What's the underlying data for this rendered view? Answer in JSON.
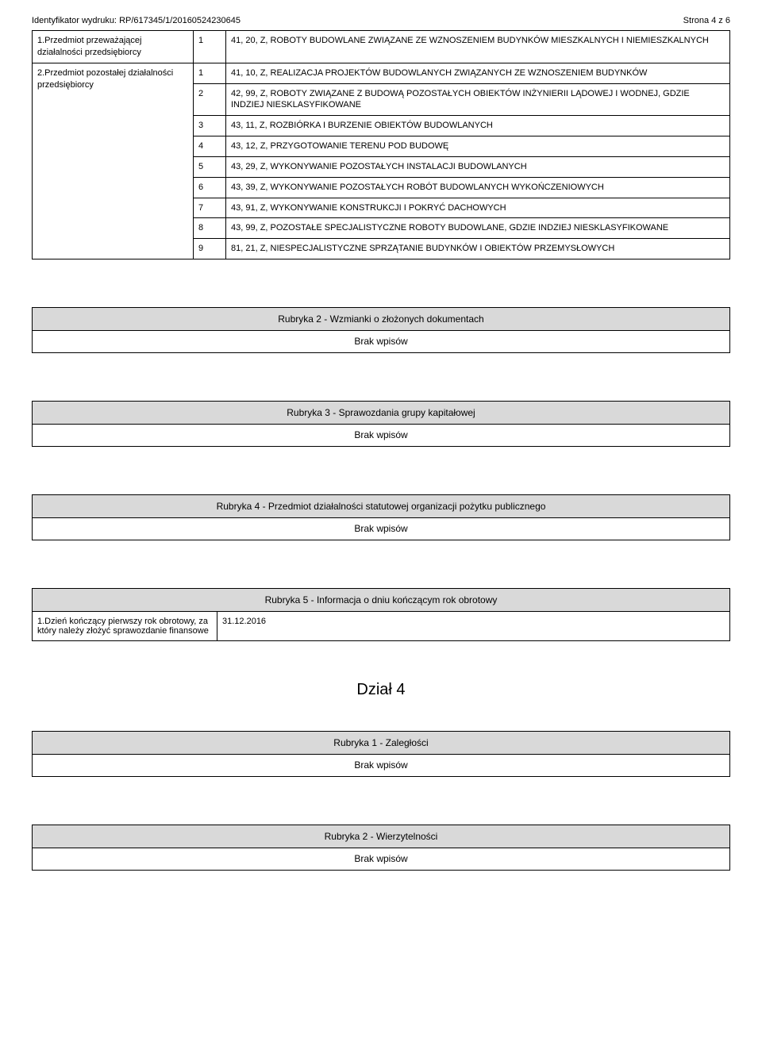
{
  "header": {
    "identifier_label": "Identyfikator wydruku:",
    "identifier_value": "RP/617345/1/20160524230645",
    "page_label": "Strona 4 z 6"
  },
  "activities_table": {
    "rows": [
      {
        "label": "1.Przedmiot przeważającej działalności przedsiębiorcy",
        "items": [
          {
            "n": "1",
            "text": "41, 20, Z, ROBOTY BUDOWLANE ZWIĄZANE ZE WZNOSZENIEM BUDYNKÓW MIESZKALNYCH I NIEMIESZKALNYCH"
          }
        ]
      },
      {
        "label": "2.Przedmiot pozostałej działalności przedsiębiorcy",
        "items": [
          {
            "n": "1",
            "text": "41, 10, Z, REALIZACJA PROJEKTÓW BUDOWLANYCH ZWIĄZANYCH ZE WZNOSZENIEM BUDYNKÓW"
          },
          {
            "n": "2",
            "text": "42, 99, Z, ROBOTY ZWIĄZANE Z BUDOWĄ POZOSTAŁYCH OBIEKTÓW INŻYNIERII LĄDOWEJ I WODNEJ, GDZIE INDZIEJ NIESKLASYFIKOWANE"
          },
          {
            "n": "3",
            "text": "43, 11, Z, ROZBIÓRKA I BURZENIE OBIEKTÓW BUDOWLANYCH"
          },
          {
            "n": "4",
            "text": "43, 12, Z, PRZYGOTOWANIE TERENU POD BUDOWĘ"
          },
          {
            "n": "5",
            "text": "43, 29, Z, WYKONYWANIE POZOSTAŁYCH INSTALACJI BUDOWLANYCH"
          },
          {
            "n": "6",
            "text": "43, 39, Z, WYKONYWANIE POZOSTAŁYCH ROBÓT BUDOWLANYCH WYKOŃCZENIOWYCH"
          },
          {
            "n": "7",
            "text": "43, 91, Z, WYKONYWANIE KONSTRUKCJI I POKRYĆ DACHOWYCH"
          },
          {
            "n": "8",
            "text": "43, 99, Z, POZOSTAŁE SPECJALISTYCZNE ROBOTY BUDOWLANE, GDZIE INDZIEJ NIESKLASYFIKOWANE"
          },
          {
            "n": "9",
            "text": "81, 21, Z, NIESPECJALISTYCZNE SPRZĄTANIE BUDYNKÓW I OBIEKTÓW PRZEMYSŁOWYCH"
          }
        ]
      }
    ]
  },
  "rubrics": {
    "r2": "Rubryka 2 - Wzmianki o złożonych dokumentach",
    "r3": "Rubryka 3 - Sprawozdania grupy kapitałowej",
    "r4": "Rubryka 4 - Przedmiot działalności statutowej organizacji pożytku publicznego",
    "r5_title": "Rubryka 5 - Informacja o dniu kończącym rok obrotowy",
    "r5_label": "1.Dzień kończący pierwszy rok obrotowy, za który należy złożyć sprawozdanie finansowe",
    "r5_value": "31.12.2016",
    "brak": "Brak wpisów",
    "dzial": "Dział 4",
    "r1_d4": "Rubryka 1 - Zaległości",
    "r2_d4": "Rubryka 2 - Wierzytelności"
  }
}
